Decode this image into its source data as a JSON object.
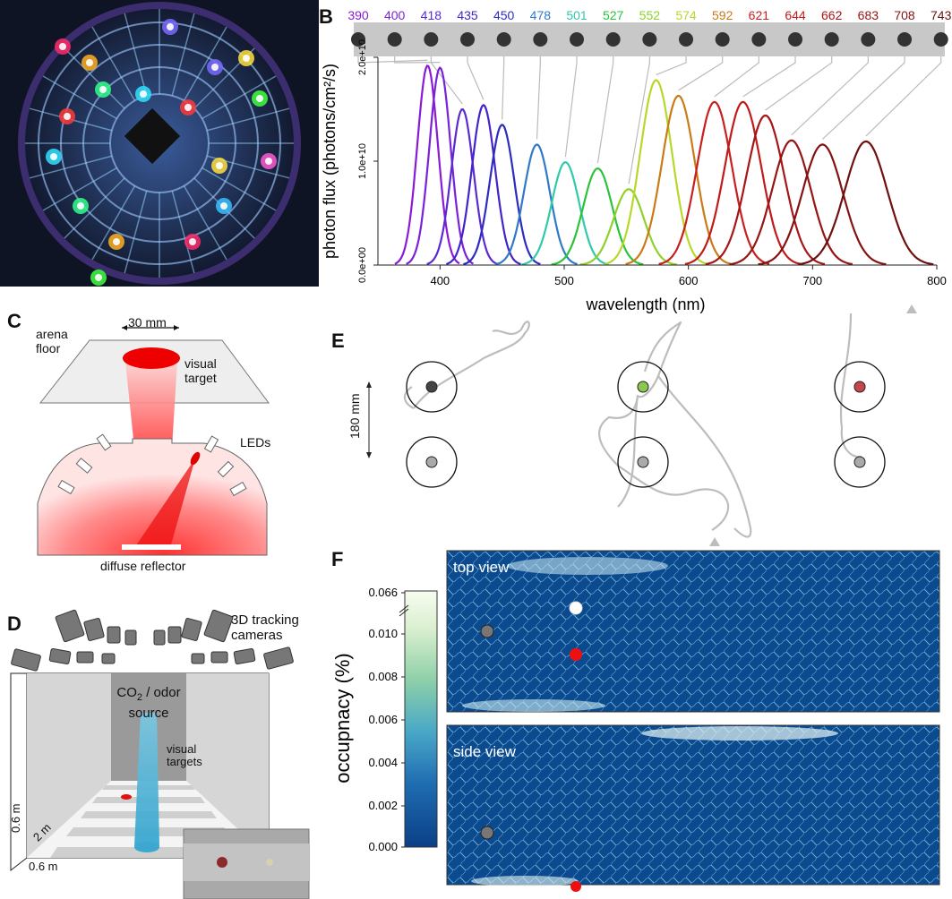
{
  "panels": {
    "a": "A",
    "b": "B",
    "c": "C",
    "d": "D",
    "e": "E",
    "f": "F"
  },
  "chart_data": {
    "type": "line",
    "xlabel": "wavelength (nm)",
    "ylabel": "photon flux (photons/cm²/s)",
    "xlim": [
      350,
      800
    ],
    "ylim": [
      0,
      20000000000.0
    ],
    "xticks": [
      "400",
      "500",
      "600",
      "700",
      "800"
    ],
    "yticks": [
      "0.0e+00",
      "1.0e+10",
      "2.0e+10"
    ],
    "peaks_nm": [
      390,
      400,
      418,
      435,
      450,
      478,
      501,
      527,
      552,
      574,
      592,
      621,
      644,
      662,
      683,
      708,
      743
    ],
    "peak_flux": [
      19200000000.0,
      19000000000.0,
      15000000000.0,
      15400000000.0,
      13500000000.0,
      11600000000.0,
      9900000000.0,
      9300000000.0,
      7300000000.0,
      17800000000.0,
      16300000000.0,
      15700000000.0,
      15700000000.0,
      14400000000.0,
      12000000000.0,
      11600000000.0,
      11900000000.0
    ],
    "colors": [
      "#8a1ad6",
      "#7a22d8",
      "#5a2ad0",
      "#4424c8",
      "#2c2cc0",
      "#2f79c9",
      "#32c9a8",
      "#2cc23a",
      "#8ed12a",
      "#b7d82a",
      "#c97b18",
      "#c81f1f",
      "#c01a1a",
      "#a51616",
      "#951414",
      "#841212",
      "#6e1010"
    ]
  },
  "panel_c": {
    "arena_floor": "arena floor",
    "diameter": "30 mm",
    "visual_target": "visual target",
    "leds": "LEDs",
    "diffuse_reflector": "diffuse reflector"
  },
  "panel_d": {
    "cameras": "3D tracking cameras",
    "source_line1": "CO",
    "source_sub": "2",
    "source_line1b": " / odor",
    "source_line2": "source",
    "targets": "visual targets",
    "dim_w": "0.6 m",
    "dim_h": "0.6 m",
    "dim_len": "2 m"
  },
  "panel_e": {
    "scale": "180 mm",
    "target_colors": [
      "#444444",
      "#8cc850",
      "#c84646"
    ],
    "lower_color": "#aaaaaa"
  },
  "panel_f": {
    "top_view": "top view",
    "side_view": "side view",
    "colorbar_label": "occupnacy (%)",
    "colorbar_ticks": [
      "0.066",
      "0.010",
      "0.008",
      "0.006",
      "0.004",
      "0.002",
      "0.000"
    ],
    "colorbar_values": [
      0.066,
      0.01,
      0.008,
      0.006,
      0.004,
      0.002,
      0.0
    ]
  }
}
